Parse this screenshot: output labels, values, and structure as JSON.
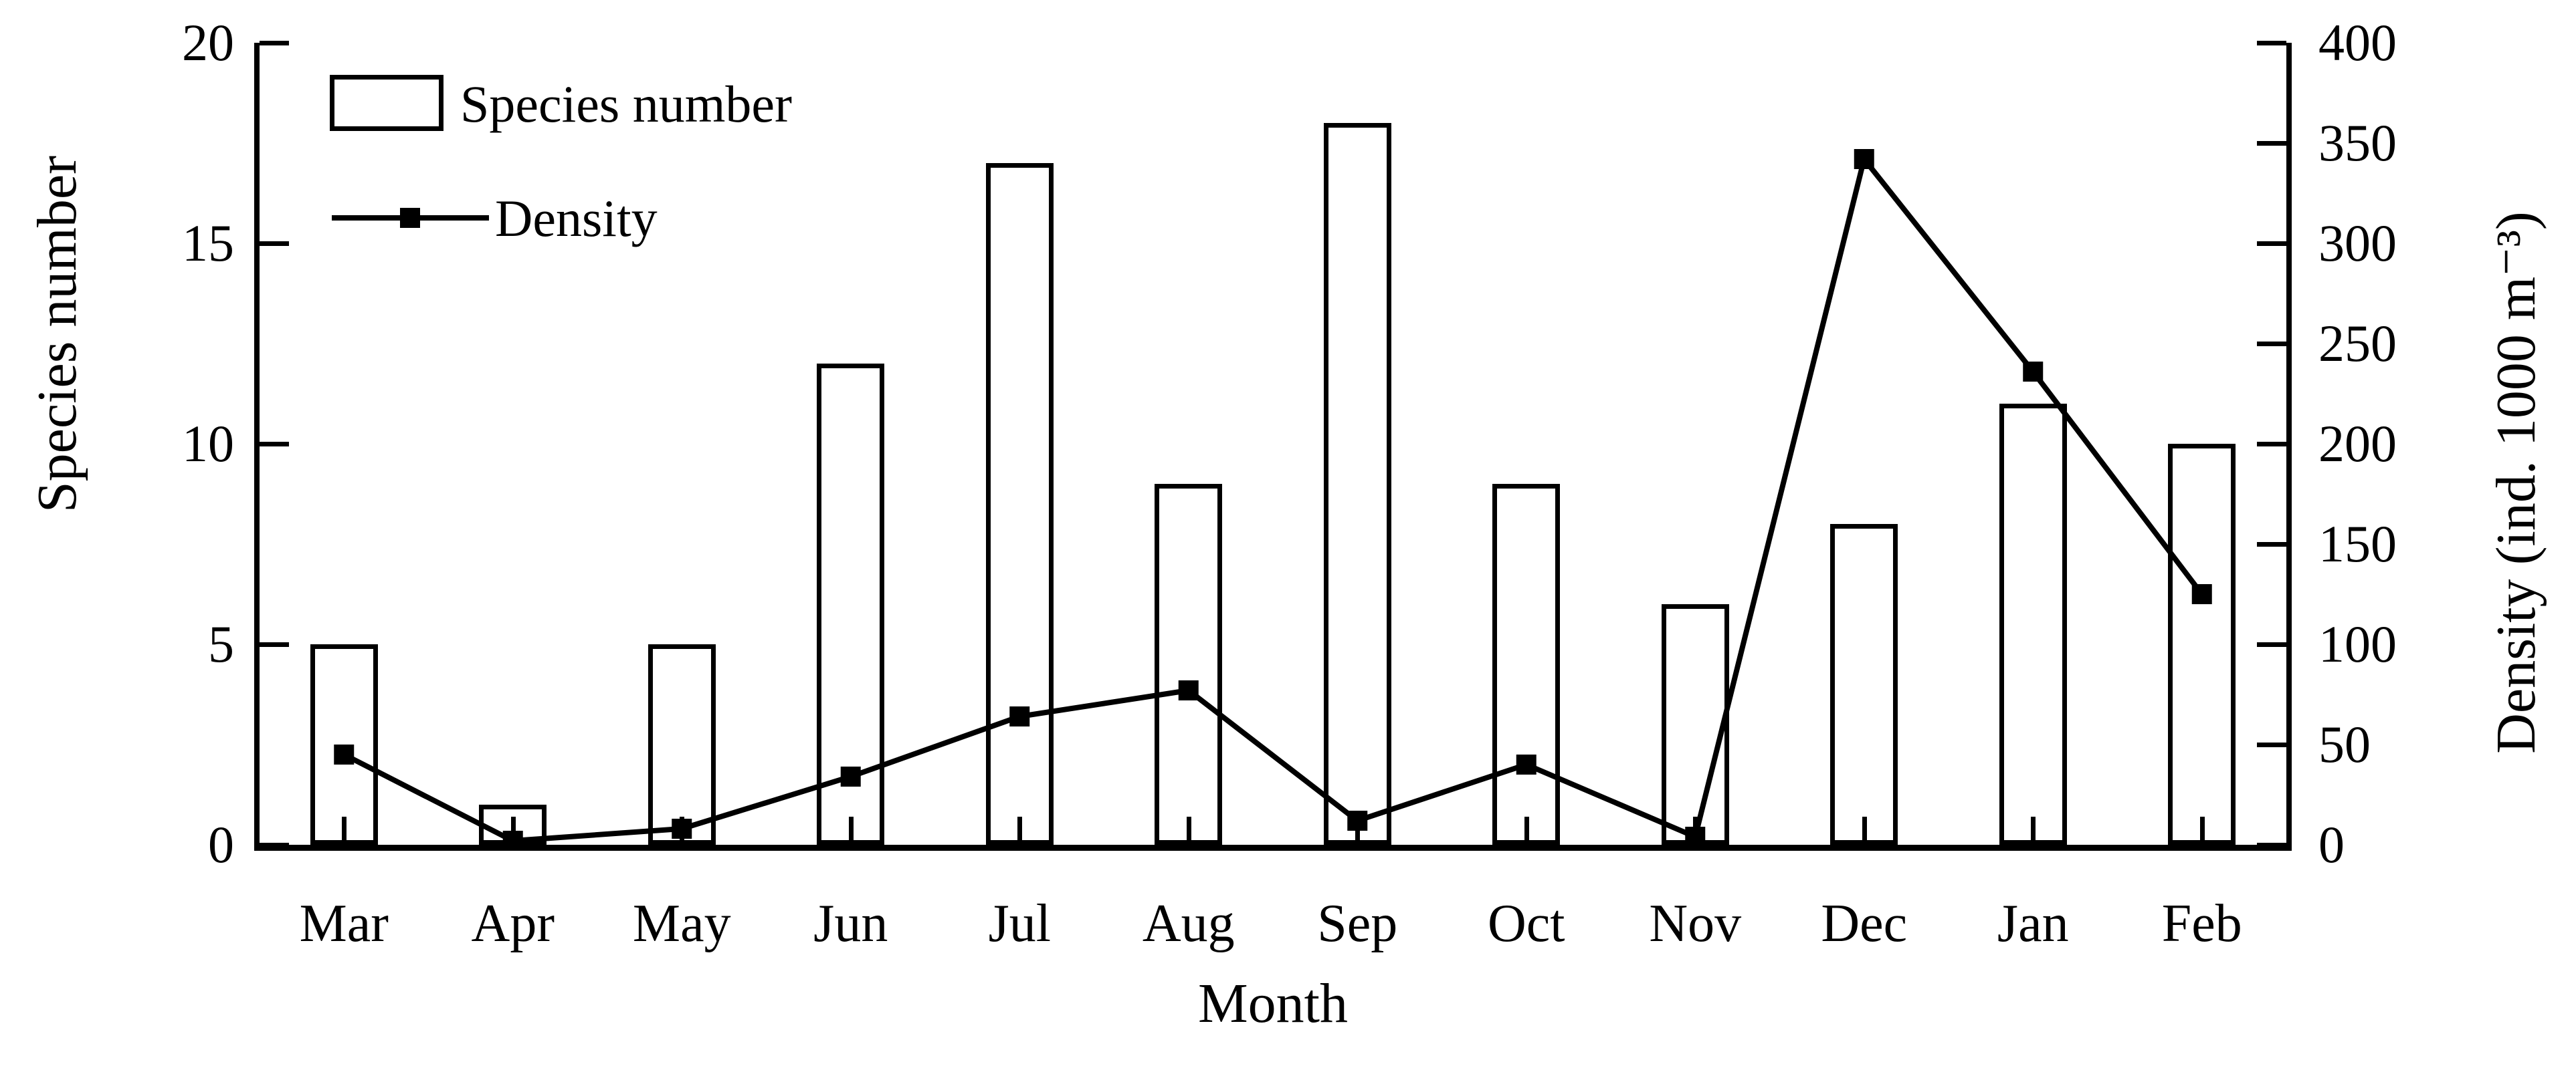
{
  "figure": {
    "background": "#ffffff",
    "ink": "#000000"
  },
  "legend": {
    "items": [
      {
        "label": "Species number",
        "swatch": "open-bar"
      },
      {
        "label": "Density",
        "swatch": "line-with-square-marker"
      }
    ]
  },
  "axes": {
    "x": {
      "title": "Month"
    },
    "y_left": {
      "title": "Species number",
      "min": 0,
      "max": 20,
      "tick_step": 5,
      "tick_labels": [
        "0",
        "5",
        "10",
        "15",
        "20"
      ]
    },
    "y_right": {
      "title": "Density (ind. 1000 m⁻³)",
      "min": 0,
      "max": 400,
      "tick_step": 50,
      "tick_labels": [
        "0",
        "50",
        "100",
        "150",
        "200",
        "250",
        "300",
        "350",
        "400"
      ]
    }
  },
  "chart_data": {
    "type": "bar+line",
    "categories": [
      "Mar",
      "Apr",
      "May",
      "Jun",
      "Jul",
      "Aug",
      "Sep",
      "Oct",
      "Nov",
      "Dec",
      "Jan",
      "Feb"
    ],
    "series": [
      {
        "name": "Species number",
        "type": "bar",
        "axis": "left",
        "values": [
          5,
          1,
          5,
          12,
          17,
          9,
          18,
          9,
          6,
          8,
          11,
          10
        ]
      },
      {
        "name": "Density",
        "type": "line",
        "axis": "right",
        "marker": "filled-square",
        "values": [
          45,
          2,
          8,
          34,
          64,
          77,
          12,
          40,
          4,
          342,
          236,
          125
        ]
      }
    ],
    "title": "",
    "xlabel": "Month",
    "ylabel_left": "Species number",
    "ylabel_right": "Density (ind. 1000 m⁻³)",
    "ylim_left": [
      0,
      20
    ],
    "ylim_right": [
      0,
      400
    ],
    "grid": false,
    "legend_position": "top-left-inside"
  }
}
